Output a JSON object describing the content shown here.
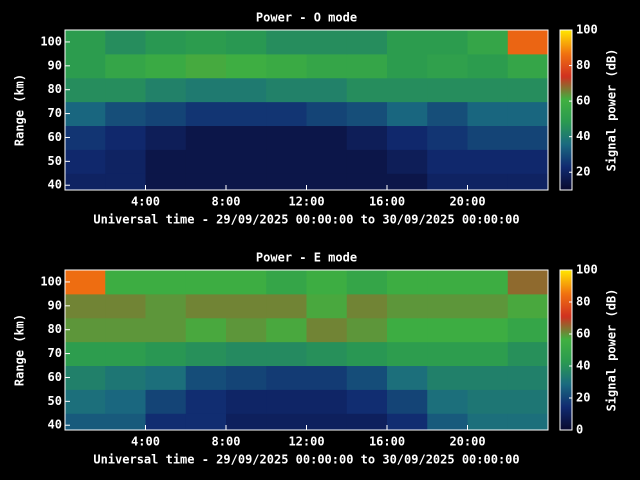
{
  "chart_data": [
    {
      "type": "heatmap",
      "title": "Power - O mode",
      "xlabel": "Universal time - 29/09/2025 00:00:00 to 30/09/2025 00:00:00",
      "ylabel": "Range (km)",
      "colorbar_label": "Signal power (dB)",
      "x": [
        1,
        3,
        5,
        7,
        9,
        11,
        13,
        15,
        17,
        19,
        21,
        23
      ],
      "y": [
        40,
        50,
        60,
        70,
        80,
        90,
        100
      ],
      "values": [
        [
          20,
          20,
          15,
          15,
          15,
          15,
          15,
          15,
          15,
          20,
          20,
          20
        ],
        [
          22,
          20,
          15,
          15,
          15,
          15,
          15,
          15,
          18,
          22,
          22,
          22
        ],
        [
          25,
          22,
          18,
          15,
          15,
          15,
          15,
          18,
          22,
          25,
          28,
          28
        ],
        [
          35,
          30,
          28,
          25,
          25,
          25,
          28,
          30,
          35,
          30,
          35,
          35
        ],
        [
          45,
          45,
          42,
          40,
          40,
          42,
          42,
          45,
          45,
          45,
          45,
          45
        ],
        [
          50,
          55,
          58,
          62,
          60,
          58,
          55,
          55,
          50,
          52,
          50,
          55
        ],
        [
          50,
          45,
          48,
          50,
          48,
          45,
          45,
          45,
          50,
          50,
          55,
          85
        ]
      ],
      "xlim": [
        0,
        24
      ],
      "xticks": [
        {
          "value": 4,
          "label": "4:00"
        },
        {
          "value": 8,
          "label": "8:00"
        },
        {
          "value": 12,
          "label": "12:00"
        },
        {
          "value": 16,
          "label": "16:00"
        },
        {
          "value": 20,
          "label": "20:00"
        }
      ],
      "ylim": [
        38,
        105
      ],
      "yticks": [
        40,
        50,
        60,
        70,
        80,
        90,
        100
      ],
      "zlim": [
        10,
        100
      ],
      "zticks": [
        20,
        40,
        60,
        80,
        100
      ],
      "colormap": [
        "#0a0a30",
        "#102a70",
        "#1a6a80",
        "#2a9a50",
        "#40b040",
        "#d03020",
        "#f07010",
        "#ffe000"
      ]
    },
    {
      "type": "heatmap",
      "title": "Power - E mode",
      "xlabel": "Universal time - 29/09/2025 00:00:00 to 30/09/2025 00:00:00",
      "ylabel": "Range (km)",
      "colorbar_label": "Signal power (dB)",
      "x": [
        1,
        3,
        5,
        7,
        9,
        11,
        13,
        15,
        17,
        19,
        21,
        23
      ],
      "y": [
        40,
        50,
        60,
        70,
        80,
        90,
        100
      ],
      "values": [
        [
          25,
          25,
          15,
          15,
          10,
          10,
          10,
          10,
          15,
          25,
          30,
          30
        ],
        [
          30,
          28,
          20,
          15,
          12,
          12,
          12,
          15,
          20,
          30,
          32,
          32
        ],
        [
          35,
          32,
          30,
          22,
          20,
          18,
          18,
          22,
          30,
          35,
          35,
          35
        ],
        [
          45,
          45,
          42,
          40,
          38,
          38,
          40,
          42,
          45,
          45,
          45,
          40
        ],
        [
          60,
          60,
          60,
          58,
          60,
          58,
          62,
          60,
          55,
          55,
          55,
          50
        ],
        [
          62,
          62,
          60,
          62,
          62,
          62,
          58,
          62,
          60,
          60,
          60,
          58
        ],
        [
          85,
          55,
          55,
          55,
          55,
          50,
          55,
          50,
          55,
          55,
          55,
          65
        ]
      ],
      "xlim": [
        0,
        24
      ],
      "xticks": [
        {
          "value": 4,
          "label": "4:00"
        },
        {
          "value": 8,
          "label": "8:00"
        },
        {
          "value": 12,
          "label": "12:00"
        },
        {
          "value": 16,
          "label": "16:00"
        },
        {
          "value": 20,
          "label": "20:00"
        }
      ],
      "ylim": [
        38,
        105
      ],
      "yticks": [
        40,
        50,
        60,
        70,
        80,
        90,
        100
      ],
      "zlim": [
        0,
        100
      ],
      "zticks": [
        0,
        20,
        40,
        60,
        80,
        100
      ],
      "colormap": [
        "#0a0a30",
        "#102a70",
        "#1a6a80",
        "#2a9a50",
        "#40b040",
        "#d03020",
        "#f07010",
        "#ffe000"
      ]
    }
  ]
}
